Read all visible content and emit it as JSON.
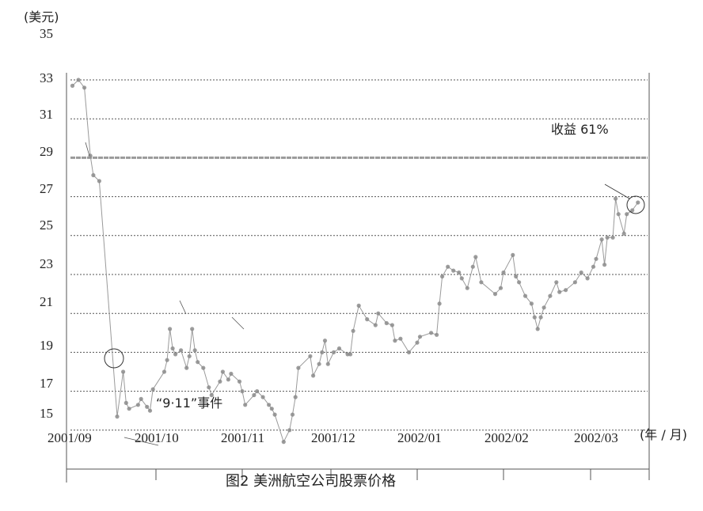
{
  "chart_data": {
    "type": "line",
    "title": "图2  美洲航空公司股票价格",
    "ylabel": "(美元)",
    "xlabel": "(年 / 月)",
    "yticks": [
      "35",
      "33",
      "31",
      "29",
      "27",
      "25",
      "23",
      "21",
      "19",
      "17",
      "15"
    ],
    "xticks": [
      "2001/09",
      "2001/10",
      "2001/11",
      "2001/12",
      "2002/01",
      "2002/02",
      "2002/03"
    ],
    "gridlines": [
      33,
      31,
      29,
      27,
      25,
      23,
      21,
      19,
      17,
      15
    ],
    "reference_line": 29,
    "grid": true,
    "colors": {
      "line": "#9a9a9a",
      "marker": "#8c8c8c",
      "grid": "#555555",
      "reference": "#9a9a9a"
    },
    "annotations": {
      "event": "“9·11”事件",
      "gain": "收益 61%"
    },
    "series": [
      {
        "points": [
          [
            "2001-09-03",
            32.7
          ],
          [
            "2001-09-05",
            33.0
          ],
          [
            "2001-09-07",
            32.6
          ],
          [
            "2001-09-09",
            29.1
          ],
          [
            "2001-09-10",
            28.1
          ],
          [
            "2001-09-12",
            27.8
          ],
          [
            "2001-09-18",
            15.7
          ],
          [
            "2001-09-20",
            18.0
          ],
          [
            "2001-09-21",
            16.4
          ],
          [
            "2001-09-22",
            16.1
          ],
          [
            "2001-09-25",
            16.3
          ],
          [
            "2001-09-26",
            16.6
          ],
          [
            "2001-09-28",
            16.2
          ],
          [
            "2001-09-29",
            16.0
          ],
          [
            "2001-09-30",
            17.1
          ],
          [
            "2001-10-04",
            18.0
          ],
          [
            "2001-10-05",
            18.6
          ],
          [
            "2001-10-06",
            20.2
          ],
          [
            "2001-10-07",
            19.2
          ],
          [
            "2001-10-08",
            18.9
          ],
          [
            "2001-10-10",
            19.1
          ],
          [
            "2001-10-12",
            18.2
          ],
          [
            "2001-10-13",
            18.8
          ],
          [
            "2001-10-14",
            20.2
          ],
          [
            "2001-10-15",
            19.1
          ],
          [
            "2001-10-16",
            18.5
          ],
          [
            "2001-10-18",
            18.2
          ],
          [
            "2001-10-20",
            17.2
          ],
          [
            "2001-10-21",
            16.8
          ],
          [
            "2001-10-24",
            17.5
          ],
          [
            "2001-10-25",
            18.0
          ],
          [
            "2001-10-27",
            17.6
          ],
          [
            "2001-10-28",
            17.9
          ],
          [
            "2001-10-31",
            17.5
          ],
          [
            "2001-11-01",
            17.0
          ],
          [
            "2001-11-02",
            16.3
          ],
          [
            "2001-11-05",
            16.8
          ],
          [
            "2001-11-06",
            17.0
          ],
          [
            "2001-11-08",
            16.7
          ],
          [
            "2001-11-10",
            16.3
          ],
          [
            "2001-11-11",
            16.1
          ],
          [
            "2001-11-12",
            15.8
          ],
          [
            "2001-11-15",
            14.4
          ],
          [
            "2001-11-17",
            15.0
          ],
          [
            "2001-11-18",
            15.8
          ],
          [
            "2001-11-19",
            16.7
          ],
          [
            "2001-11-20",
            18.2
          ],
          [
            "2001-11-24",
            18.8
          ],
          [
            "2001-11-25",
            17.8
          ],
          [
            "2001-11-27",
            18.4
          ],
          [
            "2001-11-28",
            19.0
          ],
          [
            "2001-11-29",
            19.6
          ],
          [
            "2001-11-30",
            18.4
          ],
          [
            "2001-12-02",
            19.0
          ],
          [
            "2001-12-04",
            19.2
          ],
          [
            "2001-12-07",
            18.9
          ],
          [
            "2001-12-08",
            18.9
          ],
          [
            "2001-12-09",
            20.1
          ],
          [
            "2001-12-11",
            21.4
          ],
          [
            "2001-12-14",
            20.7
          ],
          [
            "2001-12-17",
            20.4
          ],
          [
            "2001-12-18",
            21.0
          ],
          [
            "2001-12-21",
            20.5
          ],
          [
            "2001-12-23",
            20.4
          ],
          [
            "2001-12-24",
            19.6
          ],
          [
            "2001-12-26",
            19.7
          ],
          [
            "2001-12-29",
            19.0
          ],
          [
            "2002-01-01",
            19.5
          ],
          [
            "2002-01-02",
            19.8
          ],
          [
            "2002-01-06",
            20.0
          ],
          [
            "2002-01-08",
            19.9
          ],
          [
            "2002-01-09",
            21.5
          ],
          [
            "2002-01-10",
            22.9
          ],
          [
            "2002-01-12",
            23.4
          ],
          [
            "2002-01-14",
            23.2
          ],
          [
            "2002-01-16",
            23.1
          ],
          [
            "2002-01-17",
            22.8
          ],
          [
            "2002-01-19",
            22.3
          ],
          [
            "2002-01-21",
            23.4
          ],
          [
            "2002-01-22",
            23.9
          ],
          [
            "2002-01-24",
            22.6
          ],
          [
            "2002-01-29",
            22.0
          ],
          [
            "2002-01-31",
            22.3
          ],
          [
            "2002-02-01",
            23.1
          ],
          [
            "2002-02-04",
            24.0
          ],
          [
            "2002-02-05",
            22.9
          ],
          [
            "2002-02-06",
            22.6
          ],
          [
            "2002-02-08",
            21.9
          ],
          [
            "2002-02-10",
            21.5
          ],
          [
            "2002-02-11",
            20.8
          ],
          [
            "2002-02-12",
            20.2
          ],
          [
            "2002-02-13",
            20.8
          ],
          [
            "2002-02-14",
            21.3
          ],
          [
            "2002-02-16",
            21.9
          ],
          [
            "2002-02-18",
            22.6
          ],
          [
            "2002-02-19",
            22.1
          ],
          [
            "2002-02-21",
            22.2
          ],
          [
            "2002-02-24",
            22.6
          ],
          [
            "2002-02-26",
            23.1
          ],
          [
            "2002-02-28",
            22.8
          ],
          [
            "2002-03-02",
            23.4
          ],
          [
            "2002-03-03",
            23.8
          ],
          [
            "2002-03-05",
            24.8
          ],
          [
            "2002-03-06",
            23.5
          ],
          [
            "2002-03-07",
            24.9
          ],
          [
            "2002-03-09",
            24.9
          ],
          [
            "2002-03-10",
            26.9
          ],
          [
            "2002-03-11",
            26.1
          ],
          [
            "2002-03-13",
            25.1
          ],
          [
            "2002-03-14",
            26.1
          ],
          [
            "2002-03-16",
            26.3
          ],
          [
            "2002-03-18",
            26.7
          ]
        ]
      }
    ]
  }
}
